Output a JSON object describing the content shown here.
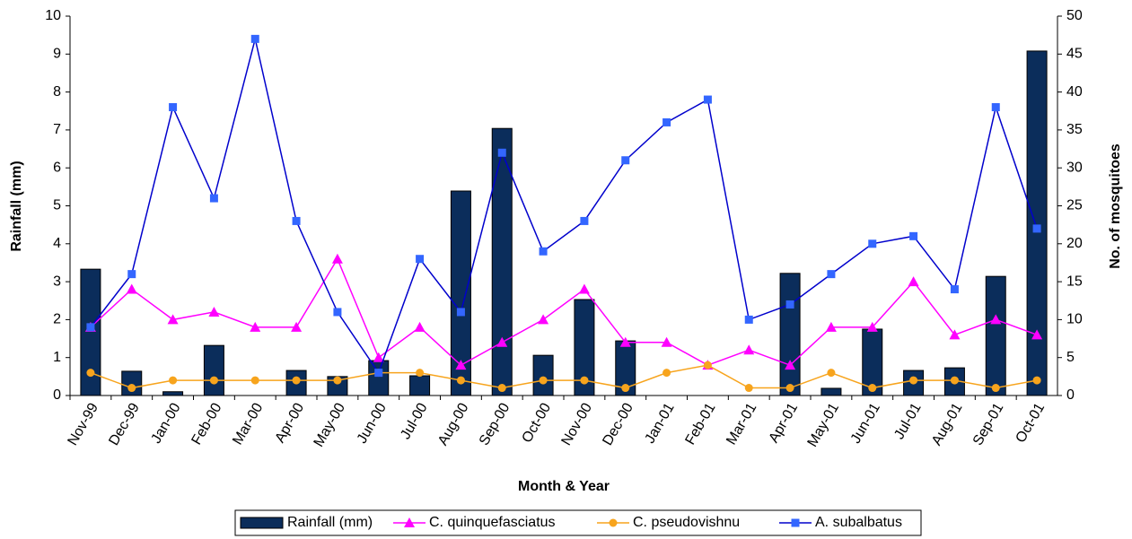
{
  "chart_data": {
    "type": "bar",
    "xlabel": "Month & Year",
    "ylabel": "Rainfall (mm)",
    "y2label": "No. of mosquitoes",
    "categories": [
      "Nov-99",
      "Dec-99",
      "Jan-00",
      "Feb-00",
      "Mar-00",
      "Apr-00",
      "May-00",
      "Jun-00",
      "Jul-00",
      "Aug-00",
      "Sep-00",
      "Oct-00",
      "Nov-00",
      "Dec-00",
      "Jan-01",
      "Feb-01",
      "Mar-01",
      "Apr-01",
      "May-01",
      "Jun-01",
      "Jul-01",
      "Aug-01",
      "Sep-01",
      "Oct-01"
    ],
    "series": [
      {
        "name": "Rainfall (mm)",
        "type": "bar",
        "axis": "y",
        "color": "#0b2d5b",
        "values": [
          3.33,
          0.64,
          0.1,
          1.32,
          0,
          0.66,
          0.5,
          0.92,
          0.52,
          5.39,
          7.04,
          1.06,
          2.53,
          1.44,
          0,
          0,
          0,
          3.22,
          0.19,
          1.75,
          0.66,
          0.73,
          3.14,
          9.08
        ]
      },
      {
        "name": "C. quinquefasciatus",
        "type": "line",
        "axis": "y2",
        "color": "#ff00ff",
        "marker": "triangle",
        "values": [
          9,
          14,
          10,
          11,
          9,
          9,
          18,
          5,
          9,
          4,
          7,
          10,
          14,
          7,
          7,
          4,
          6,
          4,
          9,
          9,
          15,
          8,
          10,
          8
        ]
      },
      {
        "name": "C. pseudovishnu",
        "type": "line",
        "axis": "y2",
        "color": "#f7a41d",
        "marker": "circle",
        "values": [
          3,
          1,
          2,
          2,
          2,
          2,
          2,
          3,
          3,
          2,
          1,
          2,
          2,
          1,
          3,
          4,
          1,
          1,
          3,
          1,
          2,
          2,
          1,
          2
        ]
      },
      {
        "name": "A. subalbatus",
        "type": "line",
        "axis": "y2",
        "color": "#0000cc",
        "marker_color": "#3366ff",
        "marker": "square",
        "values": [
          9,
          16,
          38,
          26,
          47,
          23,
          11,
          3,
          18,
          11,
          32,
          19,
          23,
          31,
          36,
          39,
          10,
          12,
          16,
          20,
          21,
          14,
          38,
          22
        ]
      }
    ],
    "ylim": [
      0,
      10
    ],
    "yticks": [
      0,
      1,
      2,
      3,
      4,
      5,
      6,
      7,
      8,
      9,
      10
    ],
    "y2lim": [
      0,
      50
    ],
    "y2ticks": [
      0,
      5,
      10,
      15,
      20,
      25,
      30,
      35,
      40,
      45,
      50
    ],
    "grid": false,
    "legend": "bottom"
  }
}
